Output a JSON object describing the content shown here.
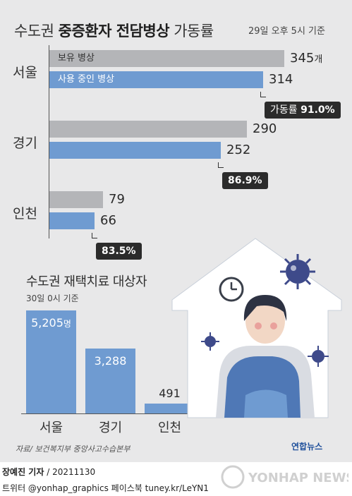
{
  "header": {
    "title_prefix": "수도권",
    "title_bold": "중증환자 전담병상",
    "title_suffix": "가동률",
    "note": "29일 오후 5시 기준"
  },
  "chart_data": [
    {
      "type": "bar",
      "orientation": "horizontal",
      "categories": [
        "서울",
        "경기",
        "인천"
      ],
      "series": [
        {
          "name": "보유 병상",
          "values": [
            345,
            290,
            79
          ],
          "color": "#b4b5b8"
        },
        {
          "name": "사용 중인 병상",
          "values": [
            314,
            252,
            66
          ],
          "color": "#6f9bd1"
        }
      ],
      "value_unit": "개",
      "rates": [
        {
          "prefix": "가동률",
          "value": "91.0%"
        },
        {
          "prefix": "",
          "value": "86.9%"
        },
        {
          "prefix": "",
          "value": "83.5%"
        }
      ],
      "labels": {
        "occupancy_rate": "가동률"
      }
    },
    {
      "type": "bar",
      "title": "수도권 재택치료 대상자",
      "subtitle": "30일 0시 기준",
      "categories": [
        "서울",
        "경기",
        "인천"
      ],
      "values": [
        5205,
        3288,
        491
      ],
      "value_labels": [
        "5,205",
        "3,288",
        "491"
      ],
      "value_unit": "명"
    }
  ],
  "footer": {
    "source": "자료/ 보건복지부 중앙사고수습본부",
    "brand": "연합뉴스",
    "reporter": "장예진 기자",
    "date": "20211130",
    "social": "트위터 @yonhap_graphics  페이스북 tuney.kr/LeYN1",
    "watermark": "YONHAP NEWS"
  },
  "colors": {
    "gray_bar": "#b4b5b8",
    "blue_bar": "#6f9bd1",
    "panel_bg": "#e8e8e9",
    "rate_bg": "#2b2b2b"
  }
}
